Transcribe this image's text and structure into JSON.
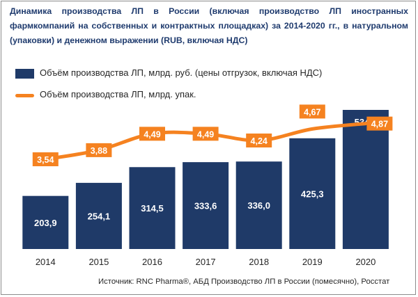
{
  "title": "Динамика производства ЛП в России (включая производство ЛП иностранных фармкомпаний на собственных и контрактных площадках) за 2014-2020 гг., в натуральном (упаковки) и денежном выражении (RUB, включая НДС)",
  "source": "Источник: RNC Pharma®, АБД Производство ЛП в России (помесячно), Росстат",
  "colors": {
    "bar": "#1f3a68",
    "line": "#f58220",
    "title": "#1f3b6e",
    "text": "#262626",
    "label_text": "#ffffff"
  },
  "chart_data": {
    "type": "bar",
    "categories": [
      "2014",
      "2015",
      "2016",
      "2017",
      "2018",
      "2019",
      "2020"
    ],
    "series": [
      {
        "name": "Объём производства ЛП, млрд. руб. (цены отгрузок, включая НДС)",
        "type": "bar",
        "axis": "primary",
        "values": [
          203.9,
          254.1,
          314.5,
          333.6,
          336.0,
          425.3,
          534.3
        ],
        "labels": [
          "203,9",
          "254,1",
          "314,5",
          "333,6",
          "336,0",
          "425,3",
          "534,3"
        ]
      },
      {
        "name": "Объём производства ЛП, млрд. упак.",
        "type": "line",
        "axis": "secondary",
        "values": [
          3.54,
          3.88,
          4.49,
          4.49,
          4.24,
          4.67,
          4.87
        ],
        "labels": [
          "3,54",
          "3,88",
          "4,49",
          "4,49",
          "4,24",
          "4,67",
          "4,87"
        ]
      }
    ],
    "axes_visible": false,
    "grid": false,
    "legend_position": "top-left"
  }
}
